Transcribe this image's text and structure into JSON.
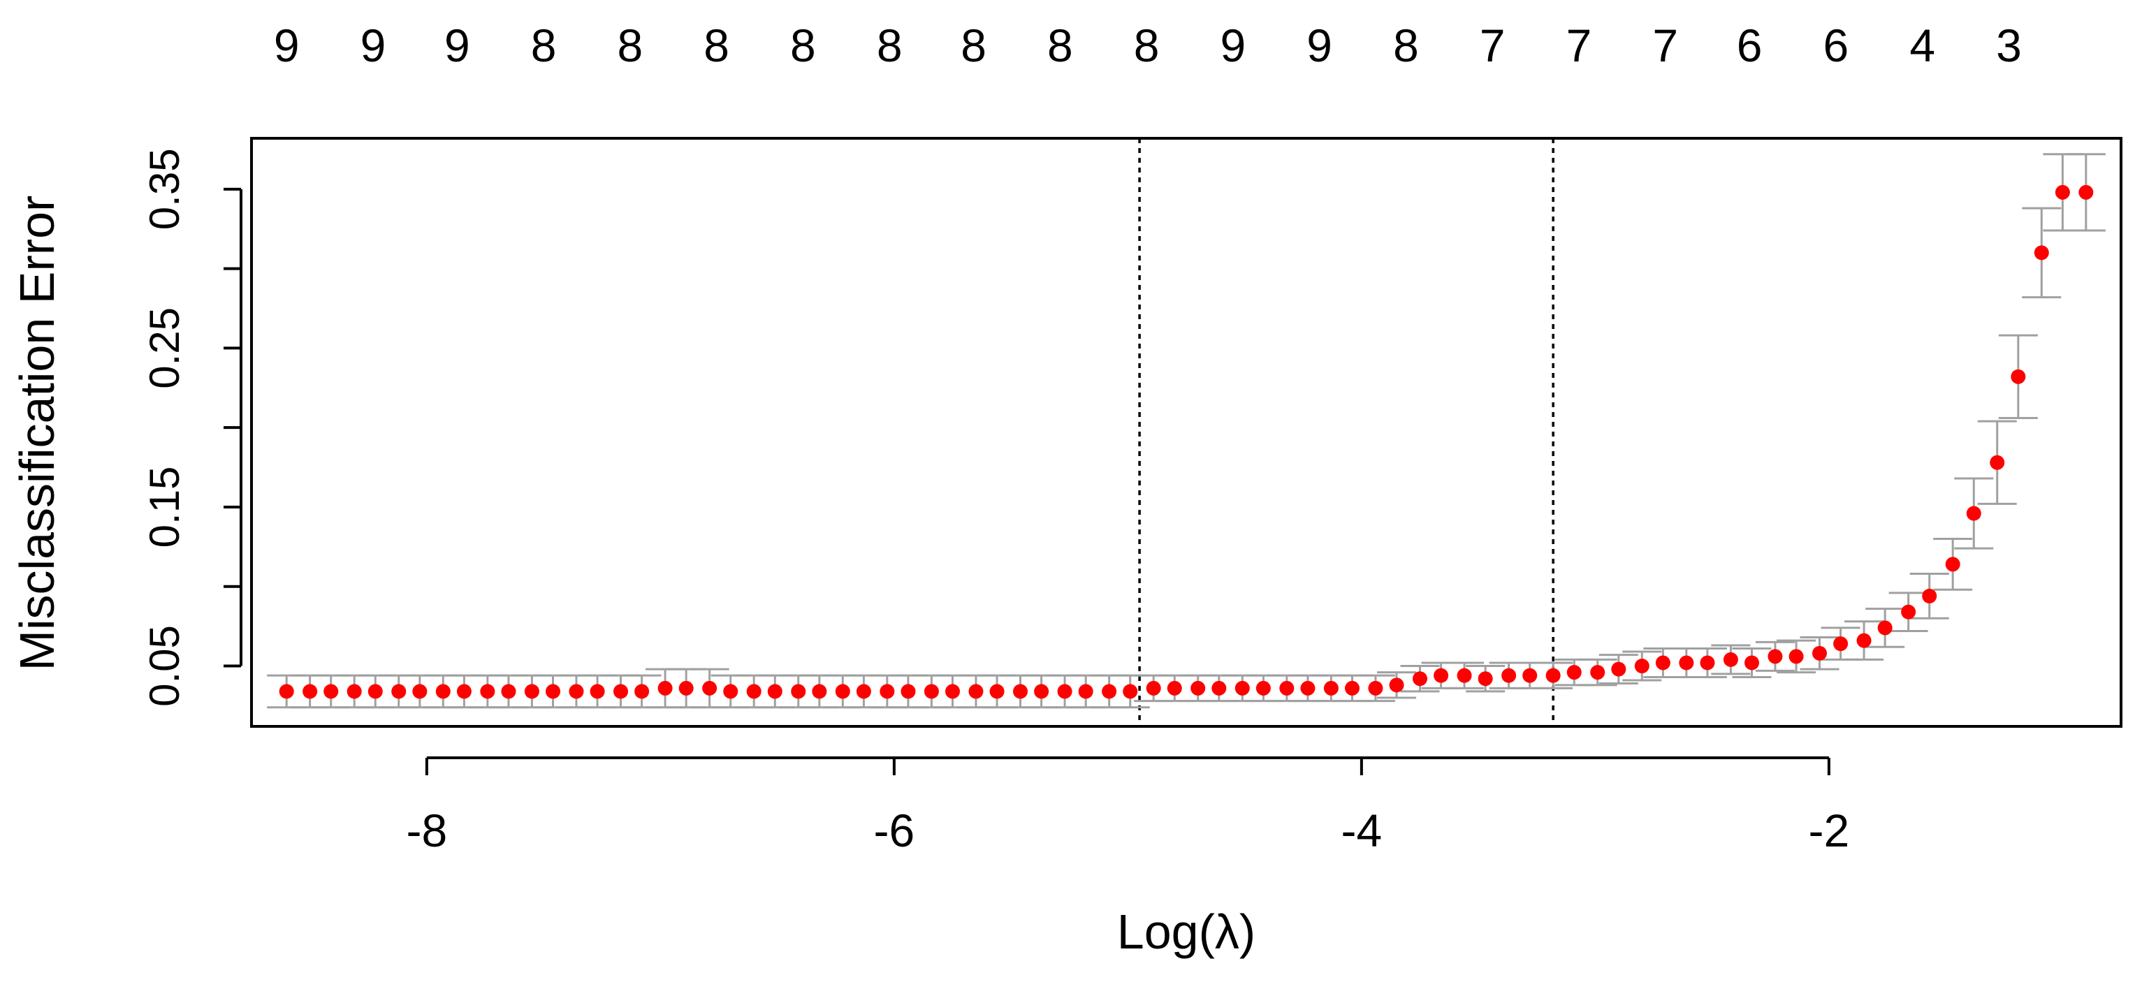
{
  "chart_data": {
    "type": "scatter",
    "title": "",
    "xlabel": "Log(λ)",
    "ylabel": "Misclassification Error",
    "xlim": [
      -8.75,
      -0.75
    ],
    "ylim": [
      0.012,
      0.382
    ],
    "x_ticks": [
      -8,
      -6,
      -4,
      -2
    ],
    "x_tick_labels": [
      "-8",
      "-6",
      "-4",
      "-2"
    ],
    "y_ticks": [
      0.05,
      0.1,
      0.15,
      0.2,
      0.25,
      0.3,
      0.35
    ],
    "y_tick_labels": [
      "0.05",
      "",
      "0.15",
      "",
      "0.25",
      "",
      "0.35"
    ],
    "grid": false,
    "legend": "none",
    "point_color": "#ff0000",
    "error_bar_color": "#a0a0a0",
    "vline_color": "#000000",
    "vlines": [
      -4.95,
      -3.18
    ],
    "top_axis": {
      "x": [
        -8.6,
        -8.23,
        -7.87,
        -7.5,
        -7.13,
        -6.76,
        -6.39,
        -6.02,
        -5.66,
        -5.29,
        -4.92,
        -4.55,
        -4.18,
        -3.81,
        -3.44,
        -3.07,
        -2.7,
        -2.34,
        -1.97,
        -1.6,
        -1.23
      ],
      "labels": [
        "9",
        "9",
        "9",
        "8",
        "8",
        "8",
        "8",
        "8",
        "8",
        "8",
        "8",
        "9",
        "9",
        "8",
        "7",
        "7",
        "7",
        "6",
        "6",
        "4",
        "3"
      ]
    },
    "series": [
      {
        "x": [
          -8.6,
          -8.5,
          -8.41,
          -8.31,
          -8.22,
          -8.12,
          -8.03,
          -7.93,
          -7.84,
          -7.74,
          -7.65,
          -7.55,
          -7.46,
          -7.36,
          -7.27,
          -7.17,
          -7.08,
          -6.98,
          -6.89,
          -6.79,
          -6.7,
          -6.6,
          -6.51,
          -6.41,
          -6.32,
          -6.22,
          -6.13,
          -6.03,
          -5.94,
          -5.84,
          -5.75,
          -5.65,
          -5.56,
          -5.46,
          -5.37,
          -5.27,
          -5.18,
          -5.08,
          -4.99,
          -4.89,
          -4.8,
          -4.7,
          -4.61,
          -4.51,
          -4.42,
          -4.32,
          -4.23,
          -4.13,
          -4.04,
          -3.94,
          -3.85,
          -3.75,
          -3.66,
          -3.56,
          -3.47,
          -3.37,
          -3.28,
          -3.18,
          -3.09,
          -2.99,
          -2.9,
          -2.8,
          -2.71,
          -2.61,
          -2.52,
          -2.42,
          -2.33,
          -2.23,
          -2.14,
          -2.04,
          -1.95,
          -1.85,
          -1.76,
          -1.66,
          -1.57,
          -1.47,
          -1.38,
          -1.28,
          -1.19,
          -1.09,
          -1.0,
          -0.9
        ],
        "y": [
          0.034,
          0.034,
          0.034,
          0.034,
          0.034,
          0.034,
          0.034,
          0.034,
          0.034,
          0.034,
          0.034,
          0.034,
          0.034,
          0.034,
          0.034,
          0.034,
          0.034,
          0.036,
          0.036,
          0.036,
          0.034,
          0.034,
          0.034,
          0.034,
          0.034,
          0.034,
          0.034,
          0.034,
          0.034,
          0.034,
          0.034,
          0.034,
          0.034,
          0.034,
          0.034,
          0.034,
          0.034,
          0.034,
          0.034,
          0.036,
          0.036,
          0.036,
          0.036,
          0.036,
          0.036,
          0.036,
          0.036,
          0.036,
          0.036,
          0.036,
          0.038,
          0.042,
          0.044,
          0.044,
          0.042,
          0.044,
          0.044,
          0.044,
          0.046,
          0.046,
          0.048,
          0.05,
          0.052,
          0.052,
          0.052,
          0.054,
          0.052,
          0.056,
          0.056,
          0.058,
          0.064,
          0.066,
          0.074,
          0.084,
          0.094,
          0.114,
          0.146,
          0.178,
          0.232,
          0.31,
          0.348,
          0.348
        ],
        "err": [
          0.01,
          0.01,
          0.01,
          0.01,
          0.01,
          0.01,
          0.01,
          0.01,
          0.01,
          0.01,
          0.01,
          0.01,
          0.01,
          0.01,
          0.01,
          0.01,
          0.01,
          0.012,
          0.012,
          0.012,
          0.01,
          0.01,
          0.01,
          0.01,
          0.01,
          0.01,
          0.01,
          0.01,
          0.01,
          0.01,
          0.01,
          0.01,
          0.01,
          0.01,
          0.01,
          0.01,
          0.01,
          0.01,
          0.01,
          0.008,
          0.008,
          0.008,
          0.008,
          0.008,
          0.008,
          0.008,
          0.008,
          0.008,
          0.008,
          0.008,
          0.008,
          0.008,
          0.008,
          0.008,
          0.008,
          0.008,
          0.008,
          0.008,
          0.008,
          0.008,
          0.009,
          0.009,
          0.009,
          0.009,
          0.009,
          0.009,
          0.009,
          0.009,
          0.01,
          0.01,
          0.01,
          0.012,
          0.012,
          0.012,
          0.014,
          0.016,
          0.022,
          0.026,
          0.026,
          0.028,
          0.024,
          0.024
        ]
      }
    ]
  }
}
